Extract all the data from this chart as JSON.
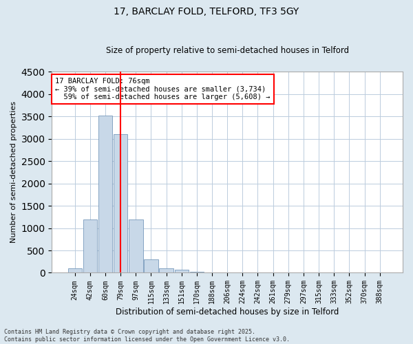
{
  "title": "17, BARCLAY FOLD, TELFORD, TF3 5GY",
  "subtitle": "Size of property relative to semi-detached houses in Telford",
  "xlabel": "Distribution of semi-detached houses by size in Telford",
  "ylabel": "Number of semi-detached properties",
  "bin_labels": [
    "24sqm",
    "42sqm",
    "60sqm",
    "79sqm",
    "97sqm",
    "115sqm",
    "133sqm",
    "151sqm",
    "170sqm",
    "188sqm",
    "206sqm",
    "224sqm",
    "242sqm",
    "261sqm",
    "279sqm",
    "297sqm",
    "315sqm",
    "333sqm",
    "352sqm",
    "370sqm",
    "388sqm"
  ],
  "bar_values": [
    100,
    1200,
    3520,
    3100,
    1200,
    300,
    100,
    65,
    25,
    5,
    0,
    0,
    0,
    0,
    0,
    0,
    0,
    0,
    0,
    0,
    0
  ],
  "bar_color": "#c8d8e8",
  "bar_edge_color": "#7799bb",
  "vline_x_index": 3,
  "vline_color": "red",
  "ylim": [
    0,
    4500
  ],
  "yticks": [
    0,
    500,
    1000,
    1500,
    2000,
    2500,
    3000,
    3500,
    4000,
    4500
  ],
  "annotation_text": "17 BARCLAY FOLD: 76sqm\n← 39% of semi-detached houses are smaller (3,734)\n  59% of semi-detached houses are larger (5,608) →",
  "annotation_box_color": "white",
  "annotation_box_edge_color": "red",
  "footer_text": "Contains HM Land Registry data © Crown copyright and database right 2025.\nContains public sector information licensed under the Open Government Licence v3.0.",
  "background_color": "#dce8f0",
  "plot_background_color": "white",
  "grid_color": "#bbccdd"
}
